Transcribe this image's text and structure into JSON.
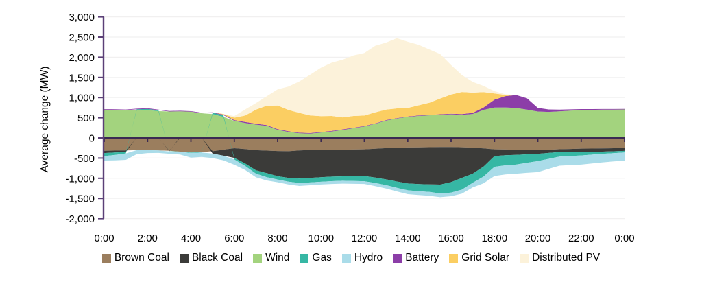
{
  "chart_data": {
    "type": "area",
    "stacked": true,
    "ylabel": "Average change (MW)",
    "ylim": [
      -2000,
      3000
    ],
    "grid": true,
    "legend_position": "bottom",
    "colors": {
      "axis": "#5B4077",
      "zero_line": "#3A2A52",
      "grid": "#F1F0F0",
      "text": "#000000",
      "background": "#FFFFFF"
    },
    "y_ticks": {
      "values": [
        3000,
        2500,
        2000,
        1500,
        1000,
        500,
        0,
        -500,
        -1000,
        -1500,
        -2000
      ],
      "labels": [
        "3,000",
        "2,500",
        "2,000",
        "1,500",
        "1,000",
        "500",
        "0",
        "-500",
        "-1,000",
        "-1,500",
        "-2,000"
      ]
    },
    "x_ticks": {
      "hours": [
        0,
        2,
        4,
        6,
        8,
        10,
        12,
        14,
        16,
        18,
        20,
        22,
        24
      ],
      "labels": [
        "0:00",
        "2:00",
        "4:00",
        "6:00",
        "8:00",
        "10:00",
        "12:00",
        "14:00",
        "16:00",
        "18:00",
        "20:00",
        "22:00",
        "0:00"
      ]
    },
    "x_hours": [
      0,
      0.5,
      1,
      1.5,
      2,
      2.5,
      3,
      3.5,
      4,
      4.5,
      5,
      5.5,
      6,
      6.5,
      7,
      7.5,
      8,
      8.5,
      9,
      9.5,
      10,
      10.5,
      11,
      11.5,
      12,
      12.5,
      13,
      13.5,
      14,
      14.5,
      15,
      15.5,
      16,
      16.5,
      17,
      17.5,
      18,
      18.5,
      19,
      19.5,
      20,
      20.5,
      21,
      21.5,
      22,
      22.5,
      23,
      23.5,
      24
    ],
    "series": [
      {
        "id": "brown-coal",
        "name": "Brown Coal",
        "color": "#9B7E5E",
        "values": [
          -320,
          -315,
          -310,
          -305,
          -305,
          -310,
          -320,
          -340,
          -360,
          -350,
          -330,
          -290,
          -255,
          -275,
          -305,
          -315,
          -325,
          -330,
          -310,
          -300,
          -290,
          -290,
          -290,
          -287,
          -283,
          -268,
          -254,
          -245,
          -237,
          -233,
          -230,
          -227,
          -225,
          -232,
          -240,
          -260,
          -283,
          -288,
          -293,
          -300,
          -305,
          -292,
          -280,
          -273,
          -266,
          -263,
          -260,
          -255,
          -250
        ]
      },
      {
        "id": "black-coal",
        "name": "Black Coal",
        "color": "#3B3B39",
        "values": [
          -56,
          -48,
          -40,
          10,
          30,
          5,
          -10,
          20,
          30,
          5,
          -60,
          -150,
          -240,
          -360,
          -498,
          -560,
          -622,
          -660,
          -695,
          -690,
          -683,
          -670,
          -662,
          -661,
          -661,
          -715,
          -774,
          -835,
          -893,
          -910,
          -923,
          -930,
          -871,
          -760,
          -646,
          -450,
          -167,
          -140,
          -127,
          -108,
          -90,
          -80,
          -71,
          -78,
          -85,
          -82,
          -80,
          -76,
          -72
        ]
      },
      {
        "id": "wind",
        "name": "Wind",
        "color": "#A3D37E",
        "values": [
          700,
          695,
          690,
          675,
          660,
          658,
          655,
          640,
          620,
          605,
          590,
          520,
          424,
          370,
          330,
          300,
          200,
          150,
          114,
          105,
          131,
          160,
          198,
          240,
          283,
          350,
          430,
          480,
          520,
          545,
          560,
          572,
          585,
          572,
          593,
          695,
          751,
          755,
          741,
          700,
          655,
          645,
          660,
          675,
          690,
          695,
          700,
          702,
          705
        ]
      },
      {
        "id": "gas",
        "name": "Gas",
        "color": "#36B7A4",
        "values": [
          -75,
          -60,
          -35,
          25,
          30,
          25,
          -5,
          -8,
          -12,
          -10,
          30,
          45,
          -40,
          -60,
          -83,
          -100,
          -84,
          -95,
          -113,
          -114,
          -114,
          -112,
          -110,
          -120,
          -129,
          -135,
          -142,
          -156,
          -170,
          -178,
          -186,
          -220,
          -260,
          -290,
          -227,
          -245,
          -266,
          -253,
          -241,
          -210,
          -181,
          -146,
          -112,
          -98,
          -85,
          -70,
          -55,
          -47,
          -39
        ]
      },
      {
        "id": "hydro",
        "name": "Hydro",
        "color": "#AADCE9",
        "values": [
          -110,
          -135,
          -160,
          -100,
          -70,
          -62,
          -58,
          -65,
          -116,
          -112,
          -110,
          -118,
          -130,
          -100,
          -90,
          -80,
          -68,
          -70,
          -73,
          -70,
          -68,
          -69,
          -70,
          -69,
          -68,
          -76,
          -84,
          -90,
          -95,
          -96,
          -96,
          -93,
          -90,
          -100,
          -113,
          -170,
          -228,
          -226,
          -225,
          -248,
          -272,
          -249,
          -226,
          -225,
          -225,
          -218,
          -210,
          -206,
          -203
        ]
      },
      {
        "id": "battery",
        "name": "Battery",
        "color": "#8C3EA8",
        "values": [
          14,
          14,
          14,
          14,
          14,
          14,
          14,
          14,
          14,
          14,
          14,
          14,
          18,
          25,
          22,
          20,
          18,
          16,
          16,
          16,
          15,
          15,
          15,
          14,
          13,
          12,
          12,
          12,
          12,
          12,
          12,
          14,
          16,
          20,
          28,
          60,
          198,
          280,
          322,
          283,
          90,
          60,
          40,
          32,
          25,
          20,
          16,
          14,
          12
        ]
      },
      {
        "id": "grid-solar",
        "name": "Grid Solar",
        "color": "#FBCE62",
        "values": [
          0,
          0,
          0,
          0,
          0,
          0,
          0,
          0,
          0,
          0,
          0,
          15,
          60,
          160,
          350,
          480,
          585,
          527,
          490,
          435,
          395,
          370,
          296,
          290,
          259,
          270,
          260,
          240,
          210,
          250,
          300,
          390,
          475,
          545,
          501,
          381,
          153,
          29,
          0,
          0,
          0,
          0,
          0,
          0,
          0,
          0,
          0,
          0,
          0
        ]
      },
      {
        "id": "distributed-pv",
        "name": "Distributed PV",
        "color": "#FCF2DA",
        "values": [
          0,
          0,
          0,
          0,
          0,
          0,
          0,
          0,
          0,
          0,
          0,
          0,
          40,
          150,
          160,
          234,
          400,
          580,
          780,
          1010,
          1200,
          1320,
          1430,
          1500,
          1550,
          1650,
          1660,
          1740,
          1640,
          1500,
          1320,
          1100,
          730,
          420,
          266,
          152,
          56,
          17,
          0,
          0,
          0,
          0,
          0,
          0,
          0,
          0,
          0,
          0,
          0
        ]
      }
    ]
  }
}
